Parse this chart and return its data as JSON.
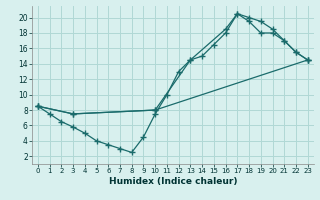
{
  "xlabel": "Humidex (Indice chaleur)",
  "bg_color": "#d8f0ee",
  "line_color": "#1a6b6b",
  "grid_color": "#b0d8d5",
  "xlim": [
    -0.5,
    23.5
  ],
  "ylim": [
    1,
    21.5
  ],
  "xticks": [
    0,
    1,
    2,
    3,
    4,
    5,
    6,
    7,
    8,
    9,
    10,
    11,
    12,
    13,
    14,
    15,
    16,
    17,
    18,
    19,
    20,
    21,
    22,
    23
  ],
  "yticks": [
    2,
    4,
    6,
    8,
    10,
    12,
    14,
    16,
    18,
    20
  ],
  "line1": [
    [
      0,
      8.5
    ],
    [
      1,
      7.5
    ],
    [
      2,
      6.5
    ],
    [
      3,
      5.8
    ],
    [
      4,
      5.0
    ],
    [
      5,
      4.0
    ],
    [
      6,
      3.5
    ],
    [
      7,
      3.0
    ],
    [
      8,
      2.5
    ],
    [
      9,
      4.5
    ],
    [
      10,
      7.5
    ],
    [
      11,
      10.0
    ],
    [
      12,
      13.0
    ],
    [
      13,
      14.5
    ],
    [
      14,
      15.0
    ],
    [
      15,
      16.5
    ],
    [
      16,
      18.0
    ],
    [
      17,
      20.5
    ],
    [
      18,
      19.5
    ],
    [
      19,
      18.0
    ],
    [
      20,
      18.0
    ],
    [
      21,
      17.0
    ],
    [
      22,
      15.5
    ],
    [
      23,
      14.5
    ]
  ],
  "line2": [
    [
      0,
      8.5
    ],
    [
      3,
      7.5
    ],
    [
      10,
      8.0
    ],
    [
      13,
      14.5
    ],
    [
      16,
      18.5
    ],
    [
      17,
      20.5
    ],
    [
      18,
      20.0
    ],
    [
      19,
      19.5
    ],
    [
      20,
      18.5
    ],
    [
      21,
      17.0
    ],
    [
      22,
      15.5
    ],
    [
      23,
      14.5
    ]
  ],
  "line3": [
    [
      0,
      8.5
    ],
    [
      3,
      7.5
    ],
    [
      10,
      8.0
    ],
    [
      23,
      14.5
    ]
  ]
}
